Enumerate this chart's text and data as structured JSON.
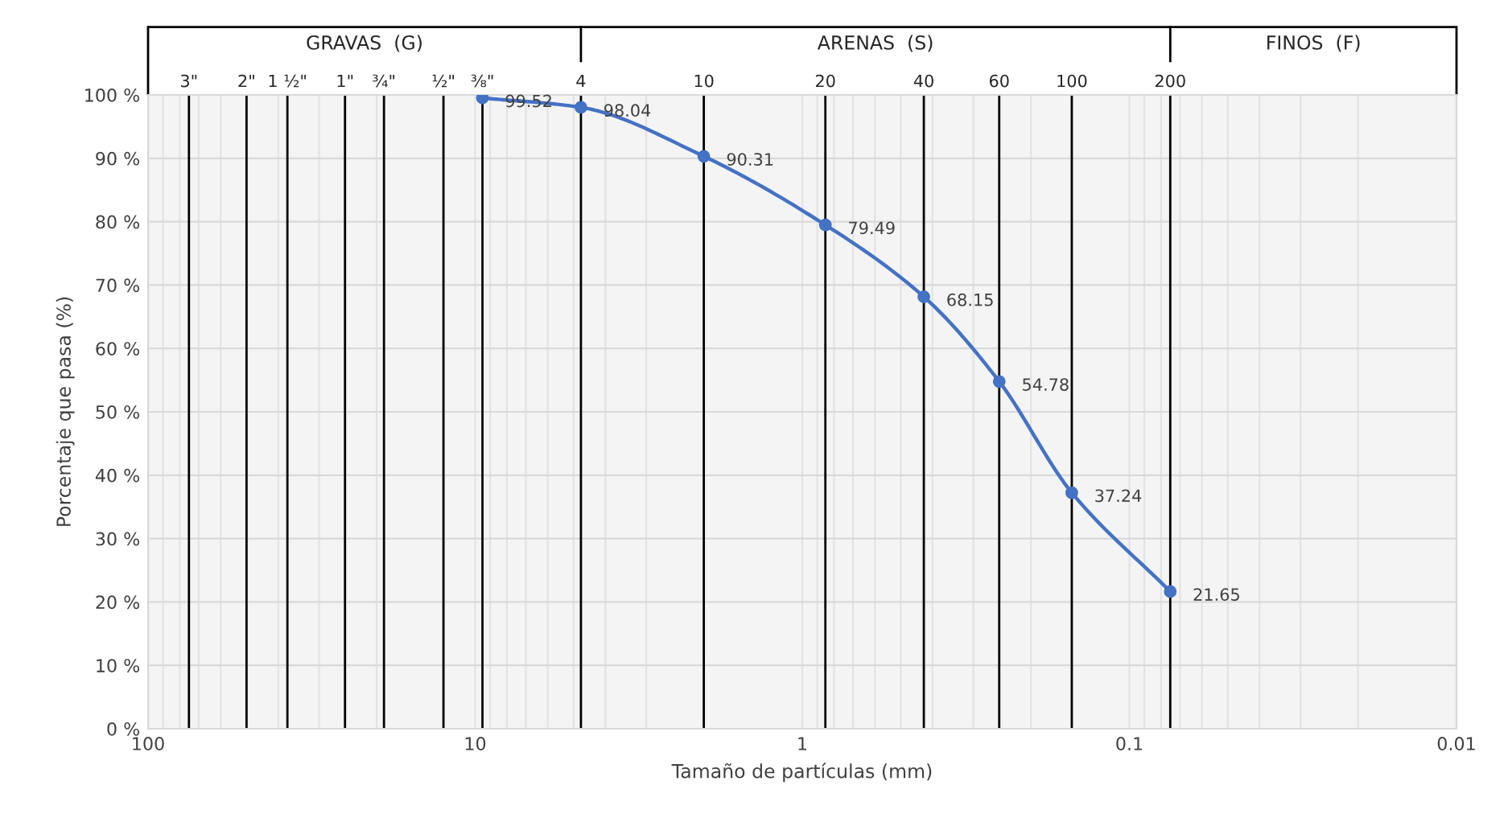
{
  "chart_data": {
    "type": "line",
    "xlabel": "Tamaño de partículas (mm)",
    "ylabel": "Porcentaje que pasa (%)",
    "x": [
      9.5,
      4.75,
      2.0,
      0.85,
      0.425,
      0.25,
      0.15,
      0.075
    ],
    "series": [
      {
        "color": "#4472c4",
        "values": [
          99.52,
          98.04,
          90.31,
          79.49,
          68.15,
          54.78,
          37.24,
          21.65
        ]
      }
    ],
    "log": "x",
    "xlim": [
      100,
      0.01
    ],
    "xticks": [
      100,
      10,
      1,
      0.1,
      0.01
    ],
    "ylim": [
      0,
      100
    ],
    "yticks": [
      {
        "value": 0,
        "label": "0 %"
      },
      {
        "value": 10,
        "label": "10 %"
      },
      {
        "value": 20,
        "label": "20 %"
      },
      {
        "value": 30,
        "label": "30 %"
      },
      {
        "value": 40,
        "label": "40 %"
      },
      {
        "value": 50,
        "label": "50 %"
      },
      {
        "value": 60,
        "label": "60 %"
      },
      {
        "value": 70,
        "label": "70 %"
      },
      {
        "value": 80,
        "label": "80 %"
      },
      {
        "value": 90,
        "label": "90 %"
      },
      {
        "value": 100,
        "label": "100 %"
      }
    ],
    "ref_lines": [
      {
        "axis": "x",
        "value": 75,
        "color": "#000000"
      },
      {
        "axis": "x",
        "value": 50,
        "color": "#000000"
      },
      {
        "axis": "x",
        "value": 37.5,
        "color": "#000000"
      },
      {
        "axis": "x",
        "value": 25,
        "color": "#000000"
      },
      {
        "axis": "x",
        "value": 19,
        "color": "#000000"
      },
      {
        "axis": "x",
        "value": 12.5,
        "color": "#000000"
      },
      {
        "axis": "x",
        "value": 9.5,
        "color": "#000000"
      },
      {
        "axis": "x",
        "value": 4.75,
        "color": "#000000"
      },
      {
        "axis": "x",
        "value": 2.0,
        "color": "#000000"
      },
      {
        "axis": "x",
        "value": 0.85,
        "color": "#000000"
      },
      {
        "axis": "x",
        "value": 0.425,
        "color": "#000000"
      },
      {
        "axis": "x",
        "value": 0.25,
        "color": "#000000"
      },
      {
        "axis": "x",
        "value": 0.15,
        "color": "#000000"
      },
      {
        "axis": "x",
        "value": 0.075,
        "color": "#000000"
      }
    ],
    "annotations": [
      {
        "text": "3\"",
        "x": 75,
        "y": 100
      },
      {
        "text": "2\"",
        "x": 50,
        "y": 100
      },
      {
        "text": "1 ½\"",
        "x": 37.5,
        "y": 100
      },
      {
        "text": "1\"",
        "x": 25,
        "y": 100
      },
      {
        "text": "¾\"",
        "x": 19,
        "y": 100
      },
      {
        "text": "½\"",
        "x": 12.5,
        "y": 100
      },
      {
        "text": "⅜\"",
        "x": 9.5,
        "y": 100
      },
      {
        "text": "4",
        "x": 4.75,
        "y": 100
      },
      {
        "text": "10",
        "x": 2.0,
        "y": 100
      },
      {
        "text": "20",
        "x": 0.85,
        "y": 100
      },
      {
        "text": "40",
        "x": 0.425,
        "y": 100
      },
      {
        "text": "60",
        "x": 0.25,
        "y": 100
      },
      {
        "text": "100",
        "x": 0.15,
        "y": 100
      },
      {
        "text": "200",
        "x": 0.075,
        "y": 100
      }
    ],
    "bands": [
      {
        "axis": "x",
        "from": 100,
        "to": 4.75,
        "label": "GRAVAS  (G)",
        "color": "#f4f4f4"
      },
      {
        "axis": "x",
        "from": 4.75,
        "to": 0.075,
        "label": "ARENAS  (S)",
        "color": "#f4f4f4"
      },
      {
        "axis": "x",
        "from": 0.075,
        "to": 0.01,
        "label": "FINOS  (F)",
        "color": "#f4f4f4"
      }
    ],
    "data_labels": true,
    "marker": "circle",
    "line_style": "solid",
    "grid": true
  }
}
